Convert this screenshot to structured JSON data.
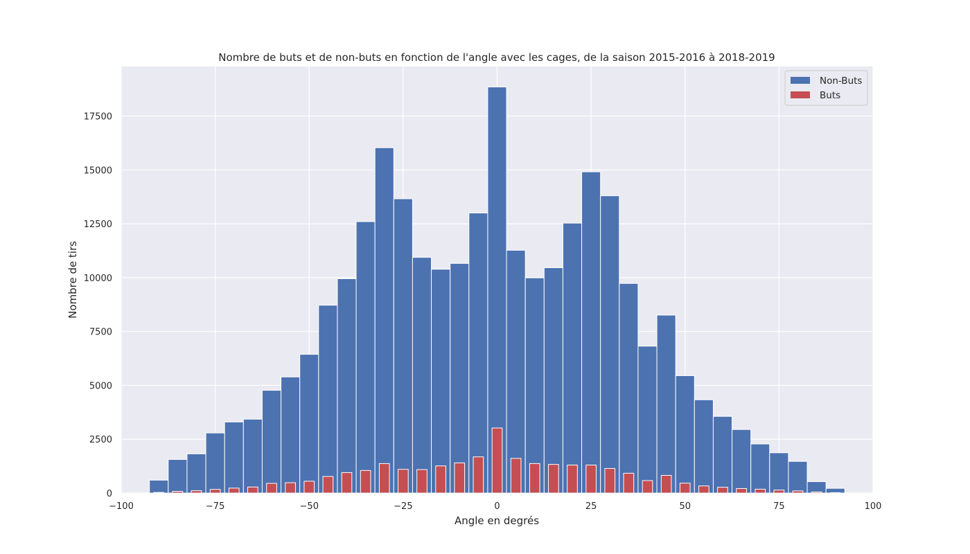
{
  "chart_data": {
    "type": "bar",
    "title": "Nombre de buts et de non-buts en fonction de l'angle avec les cages, de la saison 2015-2016 à 2018-2019",
    "xlabel": "Angle en degrés",
    "ylabel": "Nombre de tirs",
    "xlim": [
      -100,
      100
    ],
    "ylim": [
      0,
      19800
    ],
    "xticks": [
      -100,
      -75,
      -50,
      -25,
      0,
      25,
      50,
      75,
      100
    ],
    "xtick_labels": [
      "−100",
      "−75",
      "−50",
      "−25",
      "0",
      "25",
      "50",
      "75",
      "100"
    ],
    "yticks": [
      0,
      2500,
      5000,
      7500,
      10000,
      12500,
      15000,
      17500
    ],
    "ytick_labels": [
      "0",
      "2500",
      "5000",
      "7500",
      "10000",
      "12500",
      "15000",
      "17500"
    ],
    "grid": true,
    "legend_position": "top-right",
    "x": [
      -90,
      -85,
      -80,
      -75,
      -70,
      -65,
      -60,
      -55,
      -50,
      -45,
      -40,
      -35,
      -30,
      -25,
      -20,
      -15,
      -10,
      -5,
      0,
      5,
      10,
      15,
      20,
      25,
      30,
      35,
      40,
      45,
      50,
      55,
      60,
      65,
      70,
      75,
      80,
      85,
      90
    ],
    "series": [
      {
        "name": "Non-Buts",
        "color": "#4c72b0",
        "values": [
          600,
          1560,
          1820,
          2790,
          3300,
          3430,
          4770,
          5390,
          6440,
          8720,
          9950,
          12600,
          16030,
          13660,
          10940,
          10390,
          10660,
          13000,
          18850,
          11270,
          9990,
          10460,
          12530,
          14910,
          13800,
          9730,
          6820,
          8260,
          5450,
          4330,
          3560,
          2950,
          2280,
          1870,
          1470,
          530,
          220
        ]
      },
      {
        "name": "Buts",
        "color": "#c44e52",
        "values": [
          30,
          80,
          110,
          170,
          230,
          280,
          450,
          480,
          550,
          770,
          950,
          1050,
          1370,
          1100,
          1090,
          1260,
          1400,
          1680,
          3020,
          1610,
          1370,
          1330,
          1300,
          1300,
          1140,
          920,
          580,
          820,
          460,
          330,
          270,
          210,
          180,
          140,
          100,
          50,
          20
        ]
      }
    ]
  }
}
